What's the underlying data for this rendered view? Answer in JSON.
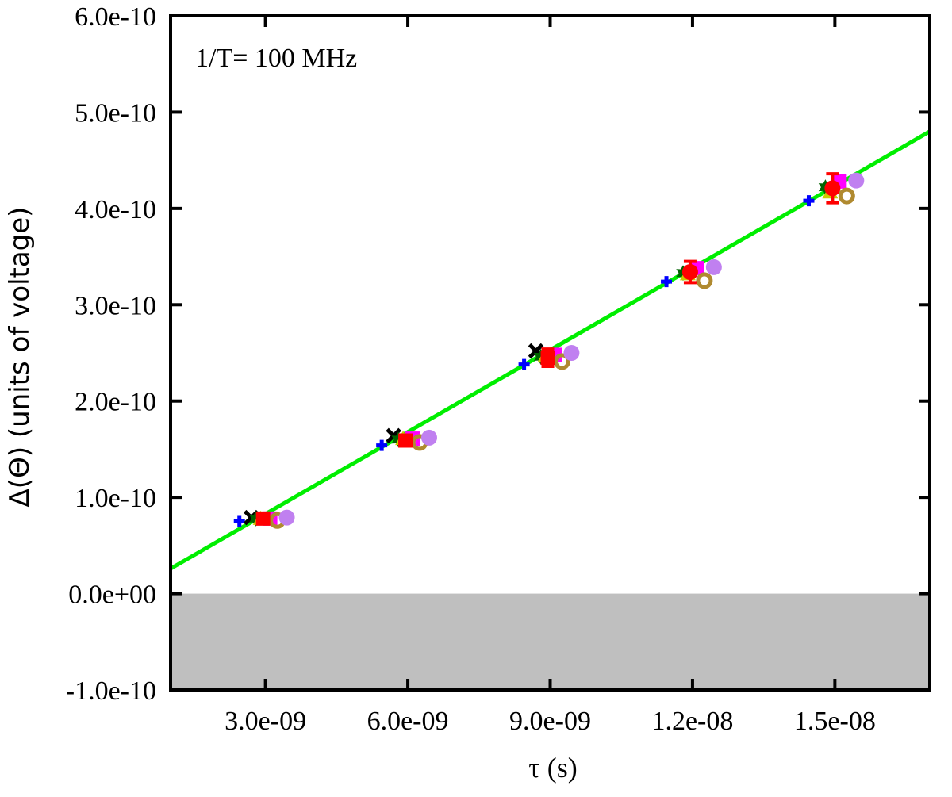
{
  "chart_data": {
    "type": "scatter",
    "annotation": "1/T= 100 MHz",
    "xlabel": "τ (s)",
    "ylabel": "Δ(Θ) (units of voltage)",
    "xlim": [
      1e-09,
      1.7e-08
    ],
    "ylim": [
      -1e-10,
      6e-10
    ],
    "x_ticks": [
      3e-09,
      6e-09,
      9e-09,
      1.2e-08,
      1.5e-08
    ],
    "x_tick_labels": [
      "3.0e-09",
      "6.0e-09",
      "9.0e-09",
      "1.2e-08",
      "1.5e-08"
    ],
    "y_ticks": [
      -1e-10,
      0,
      1e-10,
      2e-10,
      3e-10,
      4e-10,
      5e-10,
      6e-10
    ],
    "y_tick_labels": [
      "-1.0e-10",
      "0.0e+00",
      "1.0e-10",
      "2.0e-10",
      "3.0e-10",
      "4.0e-10",
      "5.0e-10",
      "6.0e-10"
    ],
    "shaded_region": {
      "y_from": -1e-10,
      "y_to": 0,
      "color": "#bfbfbf"
    },
    "fit_line": {
      "color": "#00ee00",
      "points": [
        [
          1e-09,
          2.6e-11
        ],
        [
          1.7e-08,
          4.8e-10
        ]
      ]
    },
    "series": [
      {
        "marker": "plus",
        "color": "#0000ff",
        "x": [
          2.45e-09,
          5.45e-09,
          8.45e-09,
          1.145e-08,
          1.445e-08
        ],
        "y": [
          7.5e-11,
          1.54e-10,
          2.38e-10,
          3.24e-10,
          4.08e-10
        ]
      },
      {
        "marker": "cross",
        "color": "#000000",
        "x": [
          2.7e-09,
          5.7e-09,
          8.7e-09
        ],
        "y": [
          7.9e-11,
          1.64e-10,
          2.52e-10
        ]
      },
      {
        "marker": "star",
        "color": "#006400",
        "x": [
          2.8e-09,
          5.8e-09,
          8.8e-09,
          1.18e-08,
          1.48e-08
        ],
        "y": [
          7.8e-11,
          1.6e-10,
          2.46e-10,
          3.33e-10,
          4.22e-10
        ]
      },
      {
        "marker": "triangle",
        "color": "#cccc00",
        "x": [
          2.9e-09,
          5.9e-09,
          8.9e-09,
          1.19e-08,
          1.49e-08
        ],
        "y": [
          7.8e-11,
          1.61e-10,
          2.47e-10,
          3.32e-10,
          4.17e-10
        ]
      },
      {
        "marker": "square",
        "color": "#ff00ff",
        "x": [
          3.1e-09,
          6.1e-09,
          9.1e-09,
          1.21e-08,
          1.51e-08
        ],
        "y": [
          7.8e-11,
          1.61e-10,
          2.48e-10,
          3.38e-10,
          4.28e-10
        ]
      },
      {
        "marker": "open-circle",
        "color": "#b08a30",
        "x": [
          3.25e-09,
          6.25e-09,
          9.25e-09,
          1.225e-08,
          1.525e-08
        ],
        "y": [
          7.6e-11,
          1.57e-10,
          2.41e-10,
          3.25e-10,
          4.13e-10
        ]
      },
      {
        "marker": "circle",
        "color": "#c080f0",
        "x": [
          3.45e-09,
          6.45e-09,
          9.45e-09,
          1.245e-08,
          1.545e-08
        ],
        "y": [
          7.9e-11,
          1.62e-10,
          2.5e-10,
          3.39e-10,
          4.29e-10
        ]
      },
      {
        "marker": "square-errorbar",
        "color": "#ff0000",
        "x": [
          2.95e-09,
          5.95e-09,
          8.95e-09,
          1.195e-08,
          1.495e-08
        ],
        "y": [
          7.8e-11,
          1.59e-10,
          2.45e-10,
          3.34e-10,
          4.21e-10
        ],
        "err": [
          4e-12,
          5e-12,
          9e-12,
          1.1e-11,
          1.5e-11
        ]
      }
    ]
  }
}
